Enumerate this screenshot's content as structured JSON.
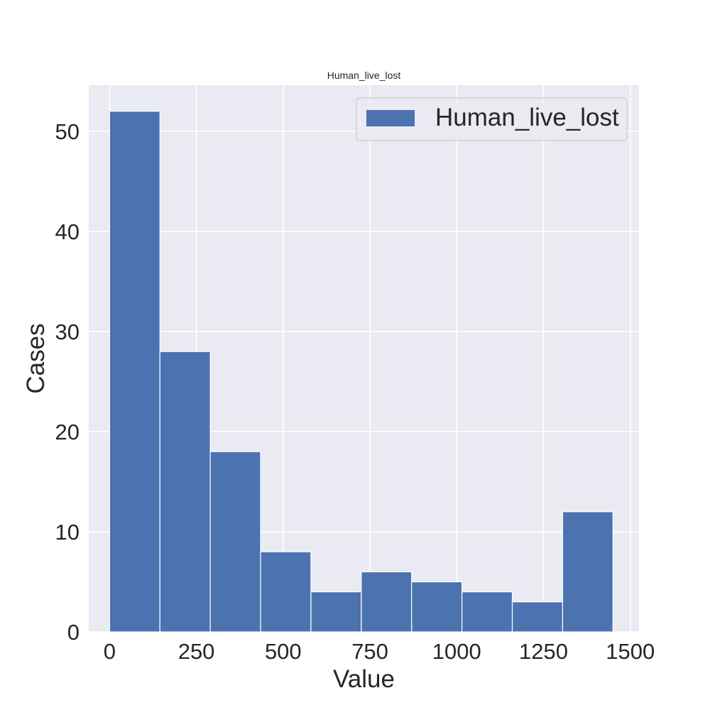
{
  "chart_data": {
    "type": "bar",
    "title": "Human_live_lost",
    "xlabel": "Value",
    "ylabel": "Cases",
    "xlim": [
      -60,
      1525
    ],
    "ylim": [
      0,
      54.6
    ],
    "xticks": [
      0,
      250,
      500,
      750,
      1000,
      1250,
      1500
    ],
    "yticks": [
      0,
      10,
      20,
      30,
      40,
      50
    ],
    "bin_edges": [
      0,
      145,
      290,
      435,
      580,
      725,
      870,
      1015,
      1160,
      1305,
      1450
    ],
    "series": [
      {
        "name": "Human_live_lost",
        "values": [
          52,
          28,
          18,
          8,
          4,
          6,
          5,
          4,
          3,
          12
        ],
        "color": "#4c72b0"
      }
    ],
    "grid": true,
    "legend_position": "top-right",
    "background_color": "#eaeaf2",
    "grid_color": "#ffffff"
  }
}
